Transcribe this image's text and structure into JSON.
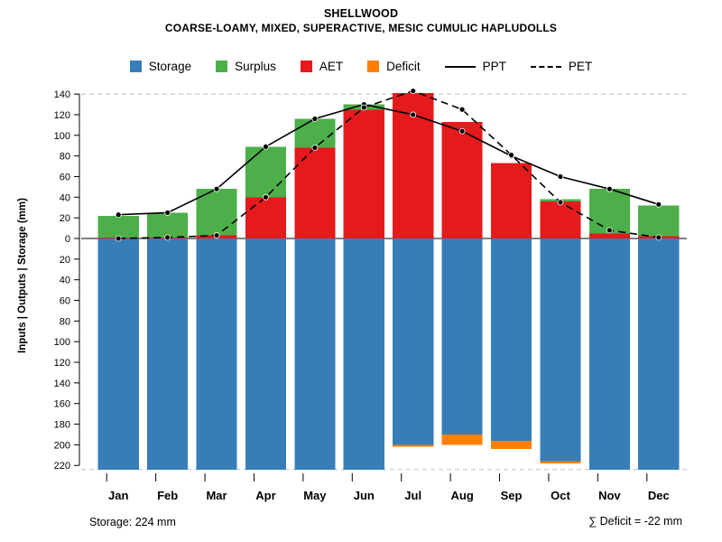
{
  "header": {
    "title": "SHELLWOOD",
    "subtitle": "COARSE-LOAMY, MIXED, SUPERACTIVE, MESIC CUMULIC HAPLUDOLLS"
  },
  "legend": {
    "items": [
      {
        "label": "Storage",
        "color": "#377EB8",
        "type": "swatch"
      },
      {
        "label": "Surplus",
        "color": "#4DAF4A",
        "type": "swatch"
      },
      {
        "label": "AET",
        "color": "#E41A1C",
        "type": "swatch"
      },
      {
        "label": "Deficit",
        "color": "#FF7F00",
        "type": "swatch"
      },
      {
        "label": "PPT",
        "color": "#000000",
        "type": "line-solid"
      },
      {
        "label": "PET",
        "color": "#000000",
        "type": "line-dashed"
      }
    ]
  },
  "footer": {
    "storage": "Storage: 224 mm",
    "deficit": "∑ Deficit = -22 mm"
  },
  "chart_data": {
    "type": "bar",
    "title": "SHELLWOOD",
    "subtitle": "COARSE-LOAMY, MIXED, SUPERACTIVE, MESIC CUMULIC HAPLUDOLLS",
    "ylabel": "Inputs | Outputs | Storage   (mm)",
    "categories": [
      "Jan",
      "Feb",
      "Mar",
      "Apr",
      "May",
      "Jun",
      "Jul",
      "Aug",
      "Sep",
      "Oct",
      "Nov",
      "Dec"
    ],
    "series": [
      {
        "name": "AET",
        "kind": "bar",
        "stack": "up",
        "color": "#E41A1C",
        "values": [
          1,
          1,
          3,
          40,
          88,
          125,
          141,
          113,
          73,
          36,
          5,
          2
        ]
      },
      {
        "name": "Surplus",
        "kind": "bar",
        "stack": "up",
        "color": "#4DAF4A",
        "values": [
          21,
          24,
          45,
          49,
          28,
          5,
          0,
          0,
          0,
          2,
          43,
          30
        ]
      },
      {
        "name": "Storage",
        "kind": "bar",
        "stack": "down",
        "color": "#377EB8",
        "values": [
          224,
          224,
          224,
          224,
          224,
          224,
          200,
          190,
          196,
          216,
          224,
          224
        ]
      },
      {
        "name": "Deficit",
        "kind": "bar",
        "stack": "down",
        "color": "#FF7F00",
        "values": [
          0,
          0,
          0,
          0,
          0,
          0,
          2,
          10,
          8,
          2,
          0,
          0
        ]
      },
      {
        "name": "PPT",
        "kind": "line",
        "style": "solid",
        "color": "#000000",
        "values": [
          23,
          25,
          48,
          89,
          116,
          130,
          120,
          104,
          80,
          60,
          48,
          33
        ]
      },
      {
        "name": "PET",
        "kind": "line",
        "style": "dashed",
        "color": "#000000",
        "values": [
          0,
          1,
          3,
          40,
          88,
          127,
          143,
          125,
          81,
          35,
          8,
          1
        ]
      }
    ],
    "yticks_up": [
      0,
      20,
      40,
      60,
      80,
      100,
      120,
      140
    ],
    "yticks_down": [
      20,
      40,
      60,
      80,
      100,
      120,
      140,
      160,
      180,
      200,
      220
    ],
    "ylim_up": 140,
    "ylim_down": 228,
    "gridlines": [
      140,
      -224
    ],
    "grid_on": true,
    "legend_position": "top",
    "annotations": {
      "storage_total": "Storage: 224 mm",
      "deficit_total": "∑ Deficit = -22 mm"
    }
  }
}
